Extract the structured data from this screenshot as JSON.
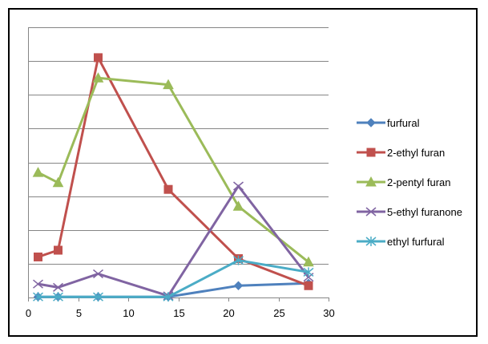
{
  "chart_data": {
    "type": "line",
    "title": "",
    "xlabel": "",
    "ylabel": "",
    "xlim": [
      0,
      30
    ],
    "ylim": [
      0,
      8
    ],
    "x_ticks": [
      0,
      5,
      10,
      15,
      20,
      25,
      30
    ],
    "y_gridlines": [
      1,
      2,
      3,
      4,
      5,
      6,
      7,
      8
    ],
    "y_tick_labels_visible": false,
    "grid": true,
    "legend_position": "right",
    "series": [
      {
        "name": "furfural",
        "color": "#4F81BD",
        "marker": "diamond",
        "x": [
          1,
          3,
          7,
          14,
          21,
          28
        ],
        "y": [
          0.02,
          0.02,
          0.02,
          0.02,
          0.35,
          0.42
        ]
      },
      {
        "name": "2-ethyl furan",
        "color": "#C0504D",
        "marker": "square",
        "x": [
          1,
          3,
          7,
          14,
          21,
          28
        ],
        "y": [
          1.2,
          1.4,
          7.1,
          3.2,
          1.15,
          0.35
        ]
      },
      {
        "name": "2-pentyl furan",
        "color": "#9BBB59",
        "marker": "triangle",
        "x": [
          1,
          3,
          7,
          14,
          21,
          28
        ],
        "y": [
          3.7,
          3.4,
          6.5,
          6.3,
          2.7,
          1.05
        ]
      },
      {
        "name": "5-ethyl furanone",
        "color": "#8064A2",
        "marker": "x",
        "x": [
          1,
          3,
          7,
          14,
          21,
          28
        ],
        "y": [
          0.4,
          0.3,
          0.7,
          0.05,
          3.3,
          0.6
        ]
      },
      {
        "name": "ethyl furfural",
        "color": "#4BACC6",
        "marker": "star",
        "x": [
          1,
          3,
          7,
          14,
          21,
          28
        ],
        "y": [
          0.02,
          0.02,
          0.02,
          0.02,
          1.1,
          0.75
        ]
      }
    ]
  }
}
